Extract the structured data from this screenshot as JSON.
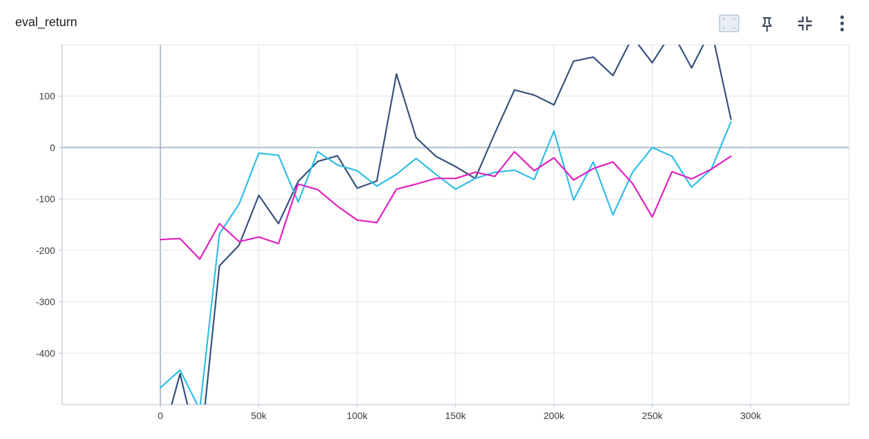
{
  "card": {
    "title": "eval_return"
  },
  "toolbar": {
    "buttons": [
      {
        "name": "fit-domain-button",
        "icon": "fit-to-data-icon"
      },
      {
        "name": "pin-button",
        "icon": "pin-icon"
      },
      {
        "name": "collapse-button",
        "icon": "fullscreen-exit-icon"
      },
      {
        "name": "more-options-button",
        "icon": "more-vert-icon"
      }
    ]
  },
  "colors": {
    "gridline": "#dde3ee",
    "axis": "#aebdcc",
    "series": [
      "#34507a",
      "#2ebde6",
      "#e01fbf"
    ]
  },
  "chart_data": {
    "type": "line",
    "title": "",
    "xlabel": "",
    "ylabel": "",
    "xlim": [
      -50000,
      350000
    ],
    "ylim": [
      -500,
      200
    ],
    "x_ticks": [
      0,
      50000,
      100000,
      150000,
      200000,
      250000,
      300000
    ],
    "x_tick_labels": [
      "0",
      "50k",
      "100k",
      "150k",
      "200k",
      "250k",
      "300k"
    ],
    "y_ticks": [
      -400,
      -300,
      -200,
      -100,
      0,
      100
    ],
    "y_tick_labels": [
      "-400",
      "-300",
      "-200",
      "-100",
      "0",
      "100"
    ],
    "grid": true,
    "series": [
      {
        "x": [
          0,
          10000,
          20000,
          30000,
          40000,
          50000,
          60000,
          70000,
          80000,
          90000,
          100000,
          110000,
          120000,
          130000,
          140000,
          150000,
          160000,
          170000,
          180000,
          190000,
          200000,
          210000,
          220000,
          230000,
          240000,
          250000,
          260000,
          270000,
          280000,
          290000
        ],
        "values": [
          -580,
          -440,
          -600,
          -230,
          -190,
          -93,
          -148,
          -66,
          -27,
          -16,
          -79,
          -65,
          143,
          19,
          -17,
          -37,
          -60,
          28,
          112,
          102,
          83,
          168,
          176,
          140,
          215,
          165,
          225,
          155,
          230,
          55
        ]
      },
      {
        "x": [
          0,
          10000,
          20000,
          30000,
          40000,
          50000,
          60000,
          70000,
          80000,
          90000,
          100000,
          110000,
          120000,
          130000,
          140000,
          150000,
          160000,
          170000,
          180000,
          190000,
          200000,
          210000,
          220000,
          230000,
          240000,
          250000,
          260000,
          270000,
          280000,
          290000
        ],
        "values": [
          -467,
          -433,
          -510,
          -168,
          -110,
          -11,
          -15,
          -106,
          -8,
          -34,
          -45,
          -75,
          -52,
          -21,
          -52,
          -81,
          -60,
          -48,
          -44,
          -62,
          32,
          -102,
          -28,
          -131,
          -48,
          0,
          -17,
          -77,
          -42,
          50
        ]
      },
      {
        "x": [
          0,
          10000,
          20000,
          30000,
          40000,
          50000,
          60000,
          70000,
          80000,
          90000,
          100000,
          110000,
          120000,
          130000,
          140000,
          150000,
          160000,
          170000,
          180000,
          190000,
          200000,
          210000,
          220000,
          230000,
          240000,
          250000,
          260000,
          270000,
          280000,
          290000
        ],
        "values": [
          -179,
          -177,
          -217,
          -148,
          -183,
          -174,
          -187,
          -71,
          -82,
          -114,
          -141,
          -146,
          -81,
          -71,
          -60,
          -60,
          -48,
          -56,
          -8,
          -45,
          -20,
          -63,
          -41,
          -28,
          -70,
          -135,
          -47,
          -61,
          -42,
          -17
        ]
      }
    ]
  }
}
